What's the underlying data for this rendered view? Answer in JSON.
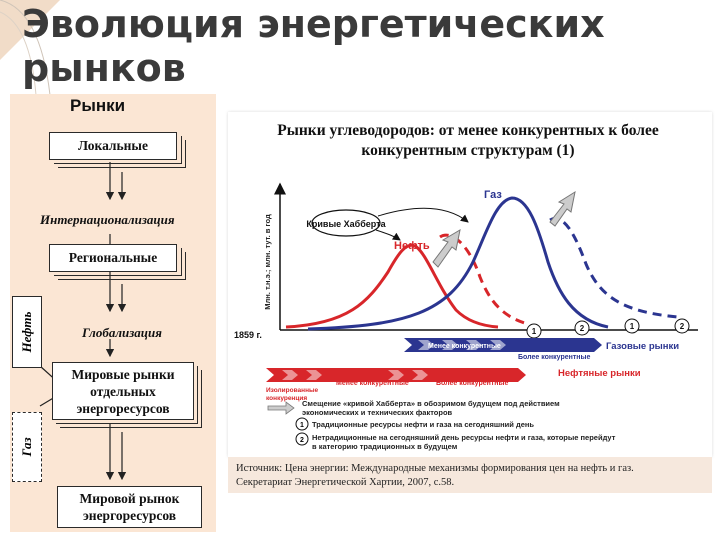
{
  "slide": {
    "title_line1": "Эволюция энергетических",
    "title_line2": "рынков"
  },
  "left": {
    "heading": "Рынки",
    "box_local": "Локальные",
    "label_internationalization": "Интернационализация",
    "box_regional": "Региональные",
    "label_globalization": "Глобализация",
    "box_world_separate": [
      "Мировые рынки",
      "отдельных",
      "энергоресурсов"
    ],
    "box_world_market": [
      "Мировой рынок",
      "энергоресурсов"
    ],
    "tag_oil": "Нефть",
    "tag_gas": "Газ"
  },
  "chart": {
    "title_line1": "Рынки углеводородов: от менее конкурентных к более",
    "title_line2": "конкурентным структурам (1)",
    "ylabel": "Млн. т.н.э.; млн. тут. в год",
    "start_year": "1859 г.",
    "label_gas": "Газ",
    "label_oil": "Нефть",
    "label_hubbert": "Кривые Хабберта",
    "circle_1": "1",
    "circle_2": "2",
    "arrow_gas_less": "Менее конкурентные",
    "arrow_gas_more": "Более конкурентные",
    "arrow_gas_markets": "Газовые рынки",
    "arrow_oil_isolated_1": "Изолированные",
    "arrow_oil_isolated_2": "конкуренция",
    "arrow_oil_less": "Менее конкурентные",
    "arrow_oil_more": "Более конкурентные",
    "arrow_oil_markets": "Нефтяные рынки",
    "legend_shift_1": "Смещение «кривой Хабберта» в обозримом будущем под действием",
    "legend_shift_2": "экономических и технических факторов",
    "legend_1": "Традиционные ресурсы нефти и газа на сегодняшний день",
    "legend_2_1": "Нетрадиционные на сегодняшний день ресурсы нефти и газа, которые перейдут",
    "legend_2_2": "в категорию традиционных в будущем",
    "colors": {
      "oil": "#d8262a",
      "gas": "#2b3590"
    }
  },
  "source": {
    "line1": "Источник: Цена энергии: Международные механизмы формирования цен на нефть и газ.",
    "line2": "Секретариат Энергетической Хартии, 2007, с.58."
  }
}
